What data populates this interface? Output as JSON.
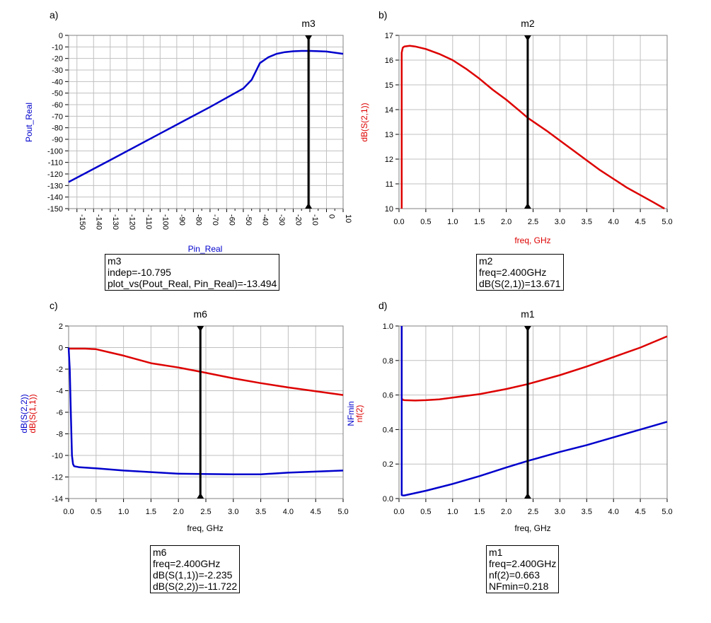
{
  "panels": {
    "a": {
      "label": "a)"
    },
    "b": {
      "label": "b)"
    },
    "c": {
      "label": "c)"
    },
    "d": {
      "label": "d)"
    }
  },
  "marker_boxes": {
    "m3": {
      "name": "m3",
      "lines": [
        "indep=-10.795",
        "plot_vs(Pout_Real, Pin_Real)=-13.494"
      ]
    },
    "m2": {
      "name": "m2",
      "lines": [
        "freq=2.400GHz",
        "dB(S(2,1))=13.671"
      ]
    },
    "m6": {
      "name": "m6",
      "lines": [
        "freq=2.400GHz",
        "dB(S(1,1))=-2.235",
        "dB(S(2,2))=-11.722"
      ]
    },
    "m1": {
      "name": "m1",
      "lines": [
        "freq=2.400GHz",
        "nf(2)=0.663",
        "NFmin=0.218"
      ]
    }
  },
  "chart_data": [
    {
      "id": "a",
      "type": "line",
      "xlabel": "Pin_Real",
      "ylabel": "Pout_Real",
      "xlim": [
        -155,
        10
      ],
      "ylim": [
        -150,
        0
      ],
      "xticks": [
        -150,
        -140,
        -130,
        -120,
        -110,
        -100,
        -90,
        -80,
        -70,
        -60,
        -50,
        -40,
        -30,
        -20,
        -10,
        0,
        10
      ],
      "yticks": [
        0,
        -10,
        -20,
        -30,
        -40,
        -50,
        -60,
        -70,
        -80,
        -90,
        -100,
        -110,
        -120,
        -130,
        -140,
        -150
      ],
      "grid": true,
      "marker": {
        "name": "m3",
        "x": -10.795
      },
      "series": [
        {
          "color": "#0000cc",
          "x": [
            -155,
            -130,
            -100,
            -70,
            -50,
            -45,
            -40,
            -35,
            -30,
            -25,
            -20,
            -15,
            -10,
            -5,
            0,
            5,
            10
          ],
          "y": [
            -127,
            -108,
            -85,
            -62,
            -46,
            -38.5,
            -24,
            -19,
            -16,
            -14.5,
            -13.8,
            -13.5,
            -13.5,
            -13.7,
            -14,
            -15,
            -16
          ]
        }
      ]
    },
    {
      "id": "b",
      "type": "line",
      "xlabel": "freq, GHz",
      "ylabel": "dB(S(2,1))",
      "xlim": [
        0,
        5
      ],
      "ylim": [
        10,
        17
      ],
      "xticks": [
        0.0,
        0.5,
        1.0,
        1.5,
        2.0,
        2.5,
        3.0,
        3.5,
        4.0,
        4.5,
        5.0
      ],
      "yticks": [
        10,
        11,
        12,
        13,
        14,
        15,
        16,
        17
      ],
      "grid": true,
      "marker": {
        "name": "m2",
        "x": 2.4
      },
      "series": [
        {
          "color": "#dd0000",
          "x": [
            0.05,
            0.05,
            0.07,
            0.1,
            0.2,
            0.3,
            0.5,
            0.75,
            1.0,
            1.25,
            1.5,
            1.75,
            2.0,
            2.25,
            2.4,
            2.75,
            3.0,
            3.25,
            3.5,
            3.75,
            4.0,
            4.25,
            4.5,
            4.75,
            4.95
          ],
          "y": [
            10.0,
            16.3,
            16.5,
            16.55,
            16.58,
            16.55,
            16.45,
            16.25,
            16.0,
            15.65,
            15.25,
            14.8,
            14.4,
            13.95,
            13.67,
            13.15,
            12.75,
            12.35,
            11.95,
            11.55,
            11.2,
            10.85,
            10.55,
            10.25,
            9.98
          ]
        }
      ]
    },
    {
      "id": "c",
      "type": "line",
      "xlabel": "freq, GHz",
      "ylabel": [
        "dB(S(2,2))",
        "dB(S(1,1))"
      ],
      "xlim": [
        0,
        5
      ],
      "ylim": [
        -14,
        2
      ],
      "xticks": [
        0.0,
        0.5,
        1.0,
        1.5,
        2.0,
        2.5,
        3.0,
        3.5,
        4.0,
        4.5,
        5.0
      ],
      "yticks": [
        2,
        0,
        -2,
        -4,
        -6,
        -8,
        -10,
        -12,
        -14
      ],
      "grid": true,
      "marker": {
        "name": "m6",
        "x": 2.4
      },
      "series": [
        {
          "name": "dB(S(1,1))",
          "color": "#dd0000",
          "x": [
            0.0,
            0.05,
            0.1,
            0.3,
            0.5,
            0.75,
            1.0,
            1.5,
            2.0,
            2.4,
            3.0,
            3.5,
            4.0,
            4.5,
            5.0
          ],
          "y": [
            -0.1,
            -0.1,
            -0.1,
            -0.1,
            -0.15,
            -0.45,
            -0.75,
            -1.45,
            -1.85,
            -2.235,
            -2.85,
            -3.3,
            -3.7,
            -4.05,
            -4.4
          ]
        },
        {
          "name": "dB(S(2,2))",
          "color": "#0000cc",
          "x": [
            0.0,
            0.02,
            0.04,
            0.06,
            0.08,
            0.1,
            0.2,
            0.5,
            1.0,
            1.5,
            2.0,
            2.4,
            3.0,
            3.5,
            4.0,
            4.5,
            5.0
          ],
          "y": [
            0.0,
            -2.0,
            -6.0,
            -10.0,
            -10.8,
            -11.0,
            -11.1,
            -11.2,
            -11.4,
            -11.55,
            -11.7,
            -11.722,
            -11.75,
            -11.75,
            -11.6,
            -11.5,
            -11.4
          ]
        }
      ]
    },
    {
      "id": "d",
      "type": "line",
      "xlabel": "freq, GHz",
      "ylabel": [
        "NFmin",
        "nf(2)"
      ],
      "xlim": [
        0,
        5
      ],
      "ylim": [
        0,
        1
      ],
      "xticks": [
        0.0,
        0.5,
        1.0,
        1.5,
        2.0,
        2.5,
        3.0,
        3.5,
        4.0,
        4.5,
        5.0
      ],
      "yticks": [
        1.0,
        0.8,
        0.6,
        0.4,
        0.2,
        0.0
      ],
      "grid": true,
      "marker": {
        "name": "m1",
        "x": 2.4
      },
      "series": [
        {
          "name": "nf(2)",
          "color": "#dd0000",
          "x": [
            0.05,
            0.05,
            0.07,
            0.1,
            0.3,
            0.5,
            0.75,
            1.0,
            1.5,
            2.0,
            2.4,
            3.0,
            3.5,
            4.0,
            4.5,
            5.0
          ],
          "y": [
            1.0,
            0.58,
            0.572,
            0.57,
            0.568,
            0.57,
            0.575,
            0.585,
            0.605,
            0.635,
            0.663,
            0.715,
            0.765,
            0.82,
            0.875,
            0.94
          ]
        },
        {
          "name": "NFmin",
          "color": "#0000cc",
          "x": [
            0.05,
            0.05,
            0.07,
            0.1,
            0.5,
            1.0,
            1.5,
            2.0,
            2.4,
            3.0,
            3.5,
            4.0,
            4.5,
            5.0
          ],
          "y": [
            1.0,
            0.02,
            0.018,
            0.018,
            0.045,
            0.085,
            0.13,
            0.18,
            0.218,
            0.27,
            0.31,
            0.355,
            0.4,
            0.445
          ]
        }
      ]
    }
  ]
}
